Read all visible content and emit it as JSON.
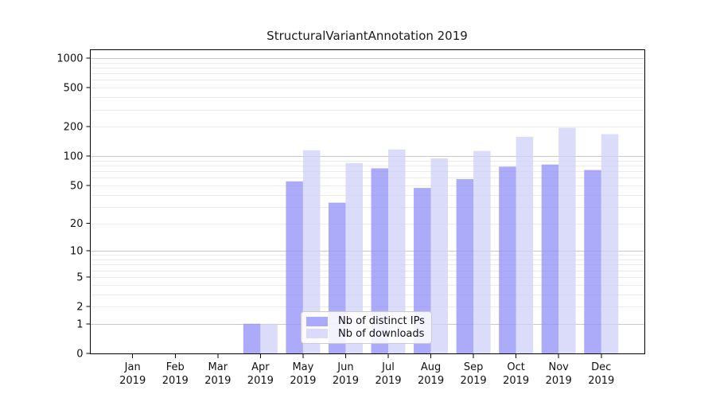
{
  "title": "StructuralVariantAnnotation 2019",
  "chart_data": {
    "type": "bar",
    "title": "StructuralVariantAnnotation 2019",
    "categories": [
      "Jan\n2019",
      "Feb\n2019",
      "Mar\n2019",
      "Apr\n2019",
      "May\n2019",
      "Jun\n2019",
      "Jul\n2019",
      "Aug\n2019",
      "Sep\n2019",
      "Oct\n2019",
      "Nov\n2019",
      "Dec\n2019"
    ],
    "series": [
      {
        "name": "Nb of distinct IPs",
        "color": "#8f8ff8",
        "opacity": 0.75,
        "rendered_color": "#abaffa",
        "values": [
          0,
          0,
          0,
          1,
          55,
          33,
          75,
          47,
          58,
          78,
          82,
          72
        ]
      },
      {
        "name": "Nb of downloads",
        "color": "#cfcff8",
        "opacity": 0.75,
        "rendered_color": "#dbdbfa",
        "values": [
          0,
          0,
          0,
          1,
          115,
          85,
          117,
          95,
          113,
          158,
          195,
          168
        ]
      }
    ],
    "xlabel": "",
    "ylabel": "",
    "yscale": "log1p",
    "ylim": [
      0,
      1230
    ],
    "yticks": [
      0,
      1,
      2,
      5,
      10,
      20,
      50,
      100,
      200,
      500,
      1000
    ],
    "grid": {
      "major": [
        1,
        10,
        100,
        1000
      ],
      "minor": [
        2,
        3,
        4,
        5,
        6,
        7,
        8,
        9,
        20,
        30,
        40,
        50,
        60,
        70,
        80,
        90,
        200,
        300,
        400,
        500,
        600,
        700,
        800,
        900
      ],
      "major_color": "#c9c9c9",
      "minor_color": "#ebebeb"
    },
    "legend": {
      "position": "lower-center",
      "entries": [
        "Nb of distinct IPs",
        "Nb of downloads"
      ]
    }
  }
}
